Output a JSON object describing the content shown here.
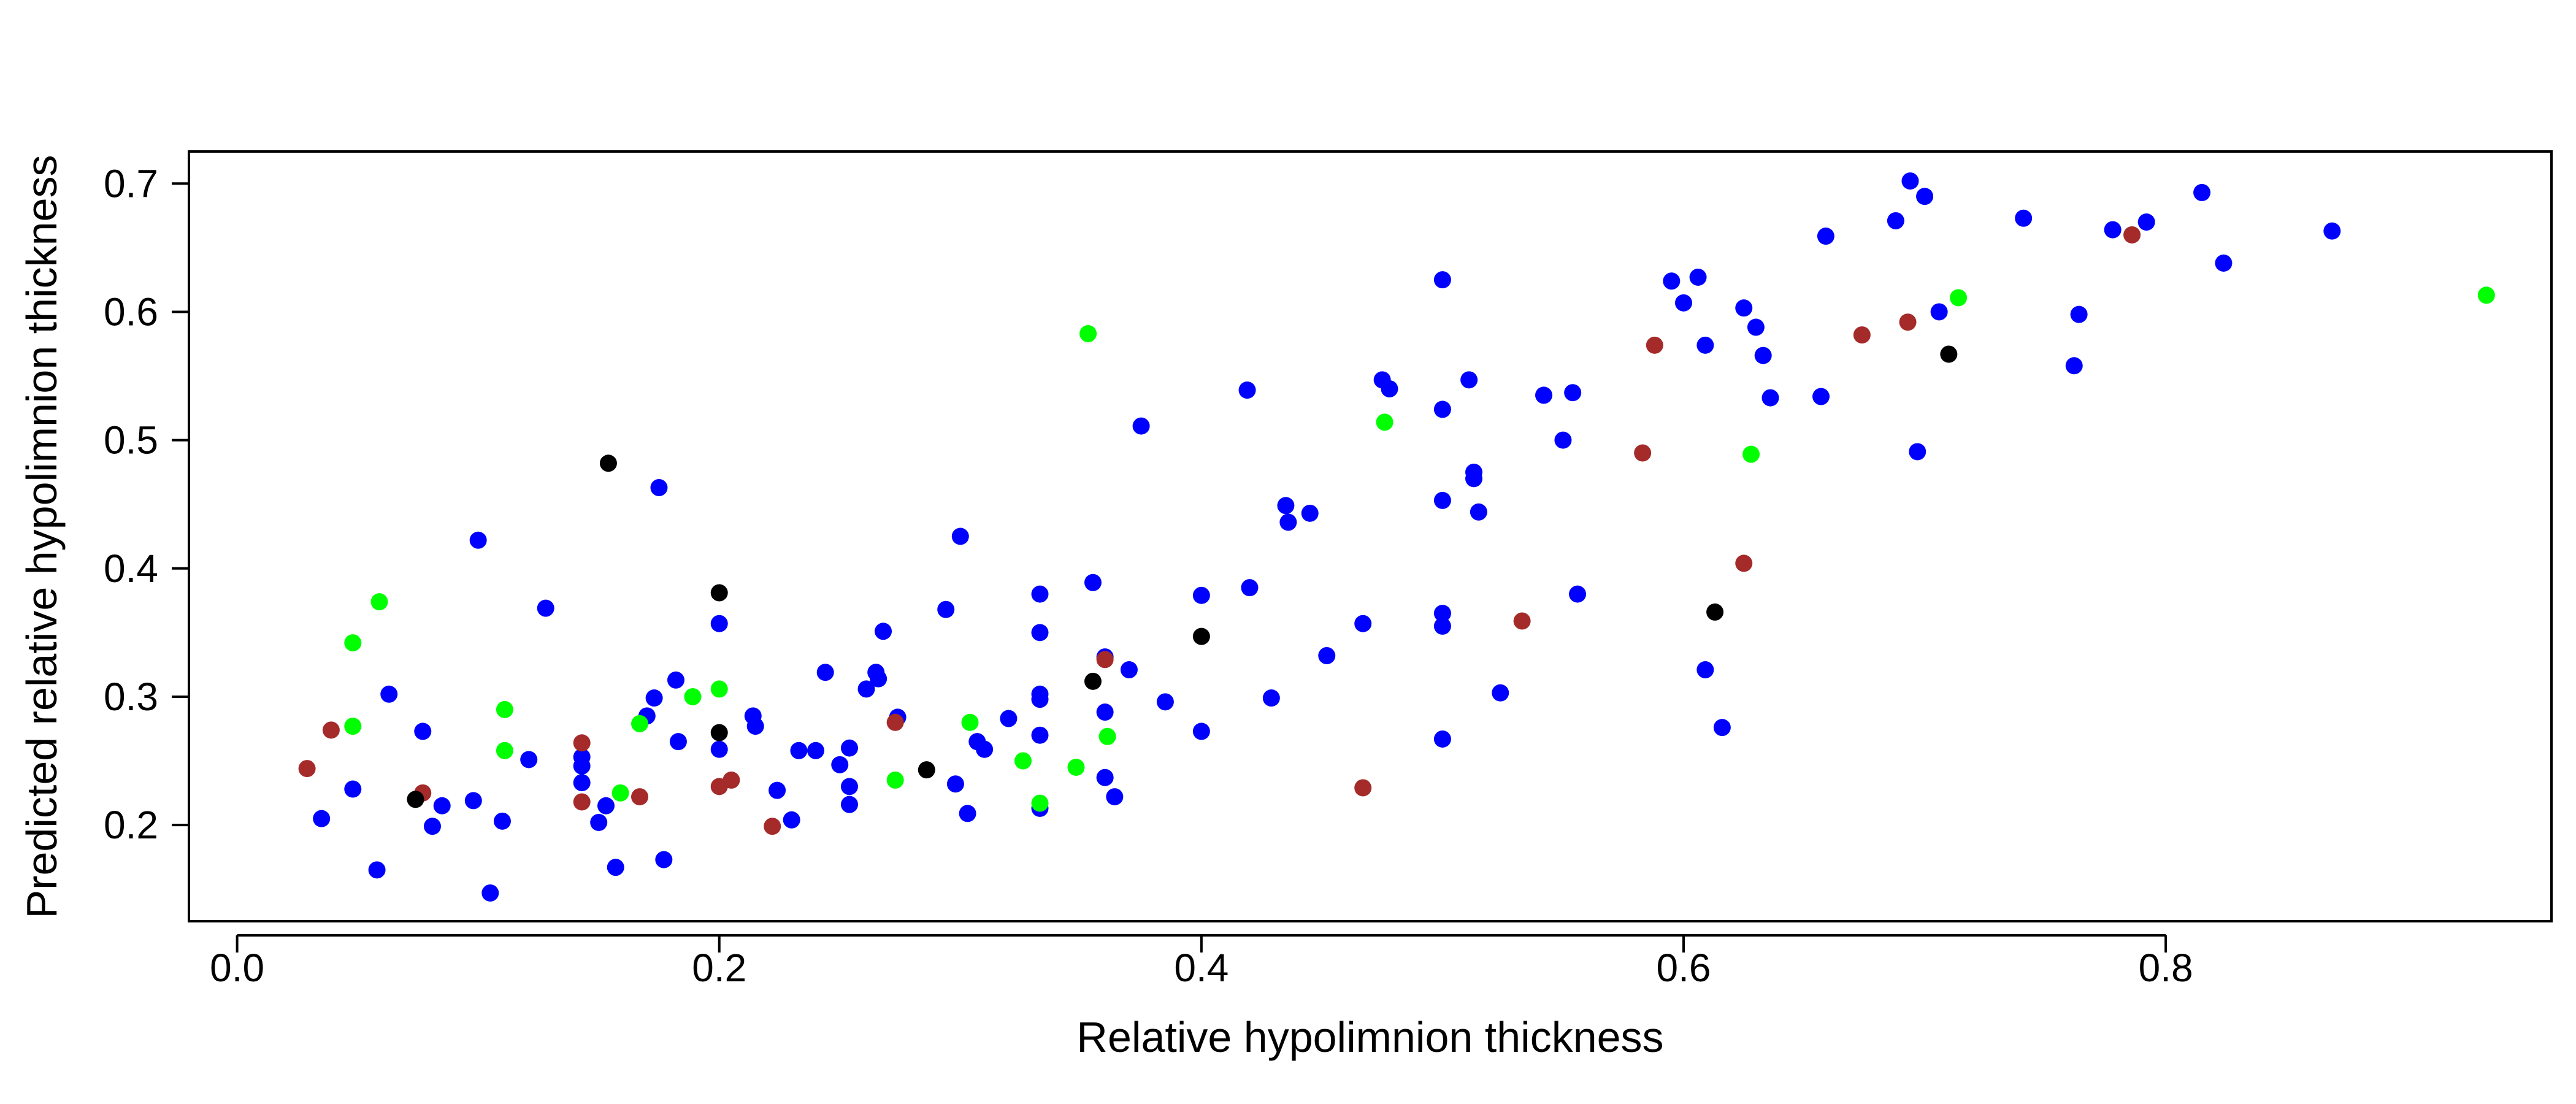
{
  "chart_data": {
    "type": "scatter",
    "title": "",
    "xlabel": "Relative hypolimnion thickness",
    "ylabel": "Predicted relative hypolimnion thickness",
    "xlim": [
      -0.02,
      0.96
    ],
    "ylim": [
      0.125,
      0.725
    ],
    "x_ticks": [
      0.0,
      0.2,
      0.4,
      0.6,
      0.8
    ],
    "y_ticks": [
      0.2,
      0.3,
      0.4,
      0.5,
      0.6,
      0.7
    ],
    "x_tick_labels": [
      "0.0",
      "0.2",
      "0.4",
      "0.6",
      "0.8"
    ],
    "y_tick_labels": [
      "0.2",
      "0.3",
      "0.4",
      "0.5",
      "0.6",
      "0.7"
    ],
    "grid": false,
    "legend": "none",
    "colors": {
      "blue": "#0000ff",
      "green": "#00ff00",
      "brown": "#a52a2a",
      "black": "#000000"
    },
    "series": [
      {
        "color": "#0000ff",
        "points": [
          [
            0.035,
            0.205
          ],
          [
            0.048,
            0.228
          ],
          [
            0.058,
            0.165
          ],
          [
            0.063,
            0.302
          ],
          [
            0.077,
            0.273
          ],
          [
            0.081,
            0.199
          ],
          [
            0.085,
            0.215
          ],
          [
            0.098,
            0.219
          ],
          [
            0.1,
            0.422
          ],
          [
            0.105,
            0.147
          ],
          [
            0.11,
            0.203
          ],
          [
            0.121,
            0.251
          ],
          [
            0.128,
            0.369
          ],
          [
            0.143,
            0.253
          ],
          [
            0.143,
            0.246
          ],
          [
            0.143,
            0.233
          ],
          [
            0.15,
            0.202
          ],
          [
            0.153,
            0.215
          ],
          [
            0.157,
            0.167
          ],
          [
            0.17,
            0.285
          ],
          [
            0.173,
            0.299
          ],
          [
            0.175,
            0.463
          ],
          [
            0.177,
            0.173
          ],
          [
            0.182,
            0.313
          ],
          [
            0.183,
            0.265
          ],
          [
            0.2,
            0.357
          ],
          [
            0.2,
            0.259
          ],
          [
            0.214,
            0.285
          ],
          [
            0.215,
            0.277
          ],
          [
            0.224,
            0.227
          ],
          [
            0.23,
            0.204
          ],
          [
            0.233,
            0.258
          ],
          [
            0.24,
            0.258
          ],
          [
            0.244,
            0.319
          ],
          [
            0.25,
            0.247
          ],
          [
            0.254,
            0.26
          ],
          [
            0.254,
            0.23
          ],
          [
            0.254,
            0.216
          ],
          [
            0.261,
            0.306
          ],
          [
            0.265,
            0.319
          ],
          [
            0.266,
            0.314
          ],
          [
            0.268,
            0.351
          ],
          [
            0.274,
            0.284
          ],
          [
            0.294,
            0.368
          ],
          [
            0.298,
            0.232
          ],
          [
            0.3,
            0.425
          ],
          [
            0.303,
            0.209
          ],
          [
            0.307,
            0.265
          ],
          [
            0.31,
            0.259
          ],
          [
            0.32,
            0.283
          ],
          [
            0.333,
            0.38
          ],
          [
            0.333,
            0.35
          ],
          [
            0.333,
            0.302
          ],
          [
            0.333,
            0.298
          ],
          [
            0.333,
            0.27
          ],
          [
            0.333,
            0.213
          ],
          [
            0.355,
            0.389
          ],
          [
            0.36,
            0.331
          ],
          [
            0.36,
            0.288
          ],
          [
            0.36,
            0.237
          ],
          [
            0.364,
            0.222
          ],
          [
            0.37,
            0.321
          ],
          [
            0.375,
            0.511
          ],
          [
            0.385,
            0.296
          ],
          [
            0.4,
            0.379
          ],
          [
            0.4,
            0.273
          ],
          [
            0.419,
            0.539
          ],
          [
            0.42,
            0.385
          ],
          [
            0.429,
            0.299
          ],
          [
            0.435,
            0.449
          ],
          [
            0.436,
            0.436
          ],
          [
            0.445,
            0.443
          ],
          [
            0.452,
            0.332
          ],
          [
            0.467,
            0.357
          ],
          [
            0.475,
            0.547
          ],
          [
            0.478,
            0.54
          ],
          [
            0.5,
            0.625
          ],
          [
            0.5,
            0.524
          ],
          [
            0.5,
            0.453
          ],
          [
            0.5,
            0.365
          ],
          [
            0.5,
            0.355
          ],
          [
            0.5,
            0.267
          ],
          [
            0.511,
            0.547
          ],
          [
            0.513,
            0.475
          ],
          [
            0.513,
            0.47
          ],
          [
            0.515,
            0.444
          ],
          [
            0.524,
            0.303
          ],
          [
            0.542,
            0.535
          ],
          [
            0.55,
            0.5
          ],
          [
            0.554,
            0.537
          ],
          [
            0.556,
            0.38
          ],
          [
            0.595,
            0.624
          ],
          [
            0.6,
            0.607
          ],
          [
            0.606,
            0.627
          ],
          [
            0.609,
            0.574
          ],
          [
            0.609,
            0.321
          ],
          [
            0.616,
            0.276
          ],
          [
            0.625,
            0.603
          ],
          [
            0.63,
            0.588
          ],
          [
            0.633,
            0.566
          ],
          [
            0.636,
            0.533
          ],
          [
            0.657,
            0.534
          ],
          [
            0.659,
            0.659
          ],
          [
            0.688,
            0.671
          ],
          [
            0.694,
            0.702
          ],
          [
            0.697,
            0.491
          ],
          [
            0.7,
            0.69
          ],
          [
            0.706,
            0.6
          ],
          [
            0.741,
            0.673
          ],
          [
            0.762,
            0.558
          ],
          [
            0.764,
            0.598
          ],
          [
            0.778,
            0.664
          ],
          [
            0.792,
            0.67
          ],
          [
            0.815,
            0.693
          ],
          [
            0.824,
            0.638
          ],
          [
            0.869,
            0.663
          ]
        ]
      },
      {
        "color": "#00ff00",
        "points": [
          [
            0.048,
            0.342
          ],
          [
            0.048,
            0.277
          ],
          [
            0.059,
            0.374
          ],
          [
            0.111,
            0.29
          ],
          [
            0.111,
            0.258
          ],
          [
            0.159,
            0.225
          ],
          [
            0.167,
            0.279
          ],
          [
            0.189,
            0.3
          ],
          [
            0.2,
            0.306
          ],
          [
            0.273,
            0.235
          ],
          [
            0.304,
            0.28
          ],
          [
            0.326,
            0.25
          ],
          [
            0.333,
            0.217
          ],
          [
            0.348,
            0.245
          ],
          [
            0.353,
            0.583
          ],
          [
            0.361,
            0.269
          ],
          [
            0.476,
            0.514
          ],
          [
            0.628,
            0.489
          ],
          [
            0.714,
            0.611
          ],
          [
            0.933,
            0.613
          ]
        ]
      },
      {
        "color": "#a52a2a",
        "points": [
          [
            0.029,
            0.244
          ],
          [
            0.039,
            0.274
          ],
          [
            0.077,
            0.225
          ],
          [
            0.143,
            0.264
          ],
          [
            0.143,
            0.218
          ],
          [
            0.167,
            0.222
          ],
          [
            0.2,
            0.23
          ],
          [
            0.205,
            0.235
          ],
          [
            0.222,
            0.199
          ],
          [
            0.273,
            0.28
          ],
          [
            0.36,
            0.329
          ],
          [
            0.467,
            0.229
          ],
          [
            0.533,
            0.359
          ],
          [
            0.583,
            0.49
          ],
          [
            0.588,
            0.574
          ],
          [
            0.625,
            0.404
          ],
          [
            0.674,
            0.582
          ],
          [
            0.693,
            0.592
          ],
          [
            0.786,
            0.66
          ]
        ]
      },
      {
        "color": "#000000",
        "points": [
          [
            0.074,
            0.22
          ],
          [
            0.154,
            0.482
          ],
          [
            0.2,
            0.381
          ],
          [
            0.2,
            0.272
          ],
          [
            0.286,
            0.243
          ],
          [
            0.355,
            0.312
          ],
          [
            0.4,
            0.347
          ],
          [
            0.613,
            0.366
          ],
          [
            0.71,
            0.567
          ]
        ]
      }
    ]
  }
}
